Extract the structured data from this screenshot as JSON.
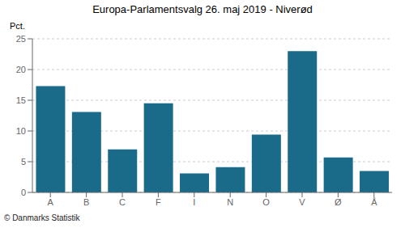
{
  "chart_data": {
    "type": "bar",
    "title": "Europa-Parlamentsvalg 26. maj 2019 - Niverød",
    "ylabel": "Pct.",
    "annotations": [
      "© Danmarks Statistik"
    ],
    "categories": [
      "A",
      "B",
      "C",
      "F",
      "I",
      "N",
      "O",
      "V",
      "Ø",
      "Å"
    ],
    "values": [
      17.3,
      13.1,
      7.0,
      14.5,
      3.1,
      4.1,
      9.4,
      23.0,
      5.7,
      3.5
    ],
    "color": "#1a6b8a",
    "ylim": [
      0,
      25
    ],
    "yticks": [
      0,
      5,
      10,
      15,
      20,
      25
    ],
    "grid": true
  }
}
